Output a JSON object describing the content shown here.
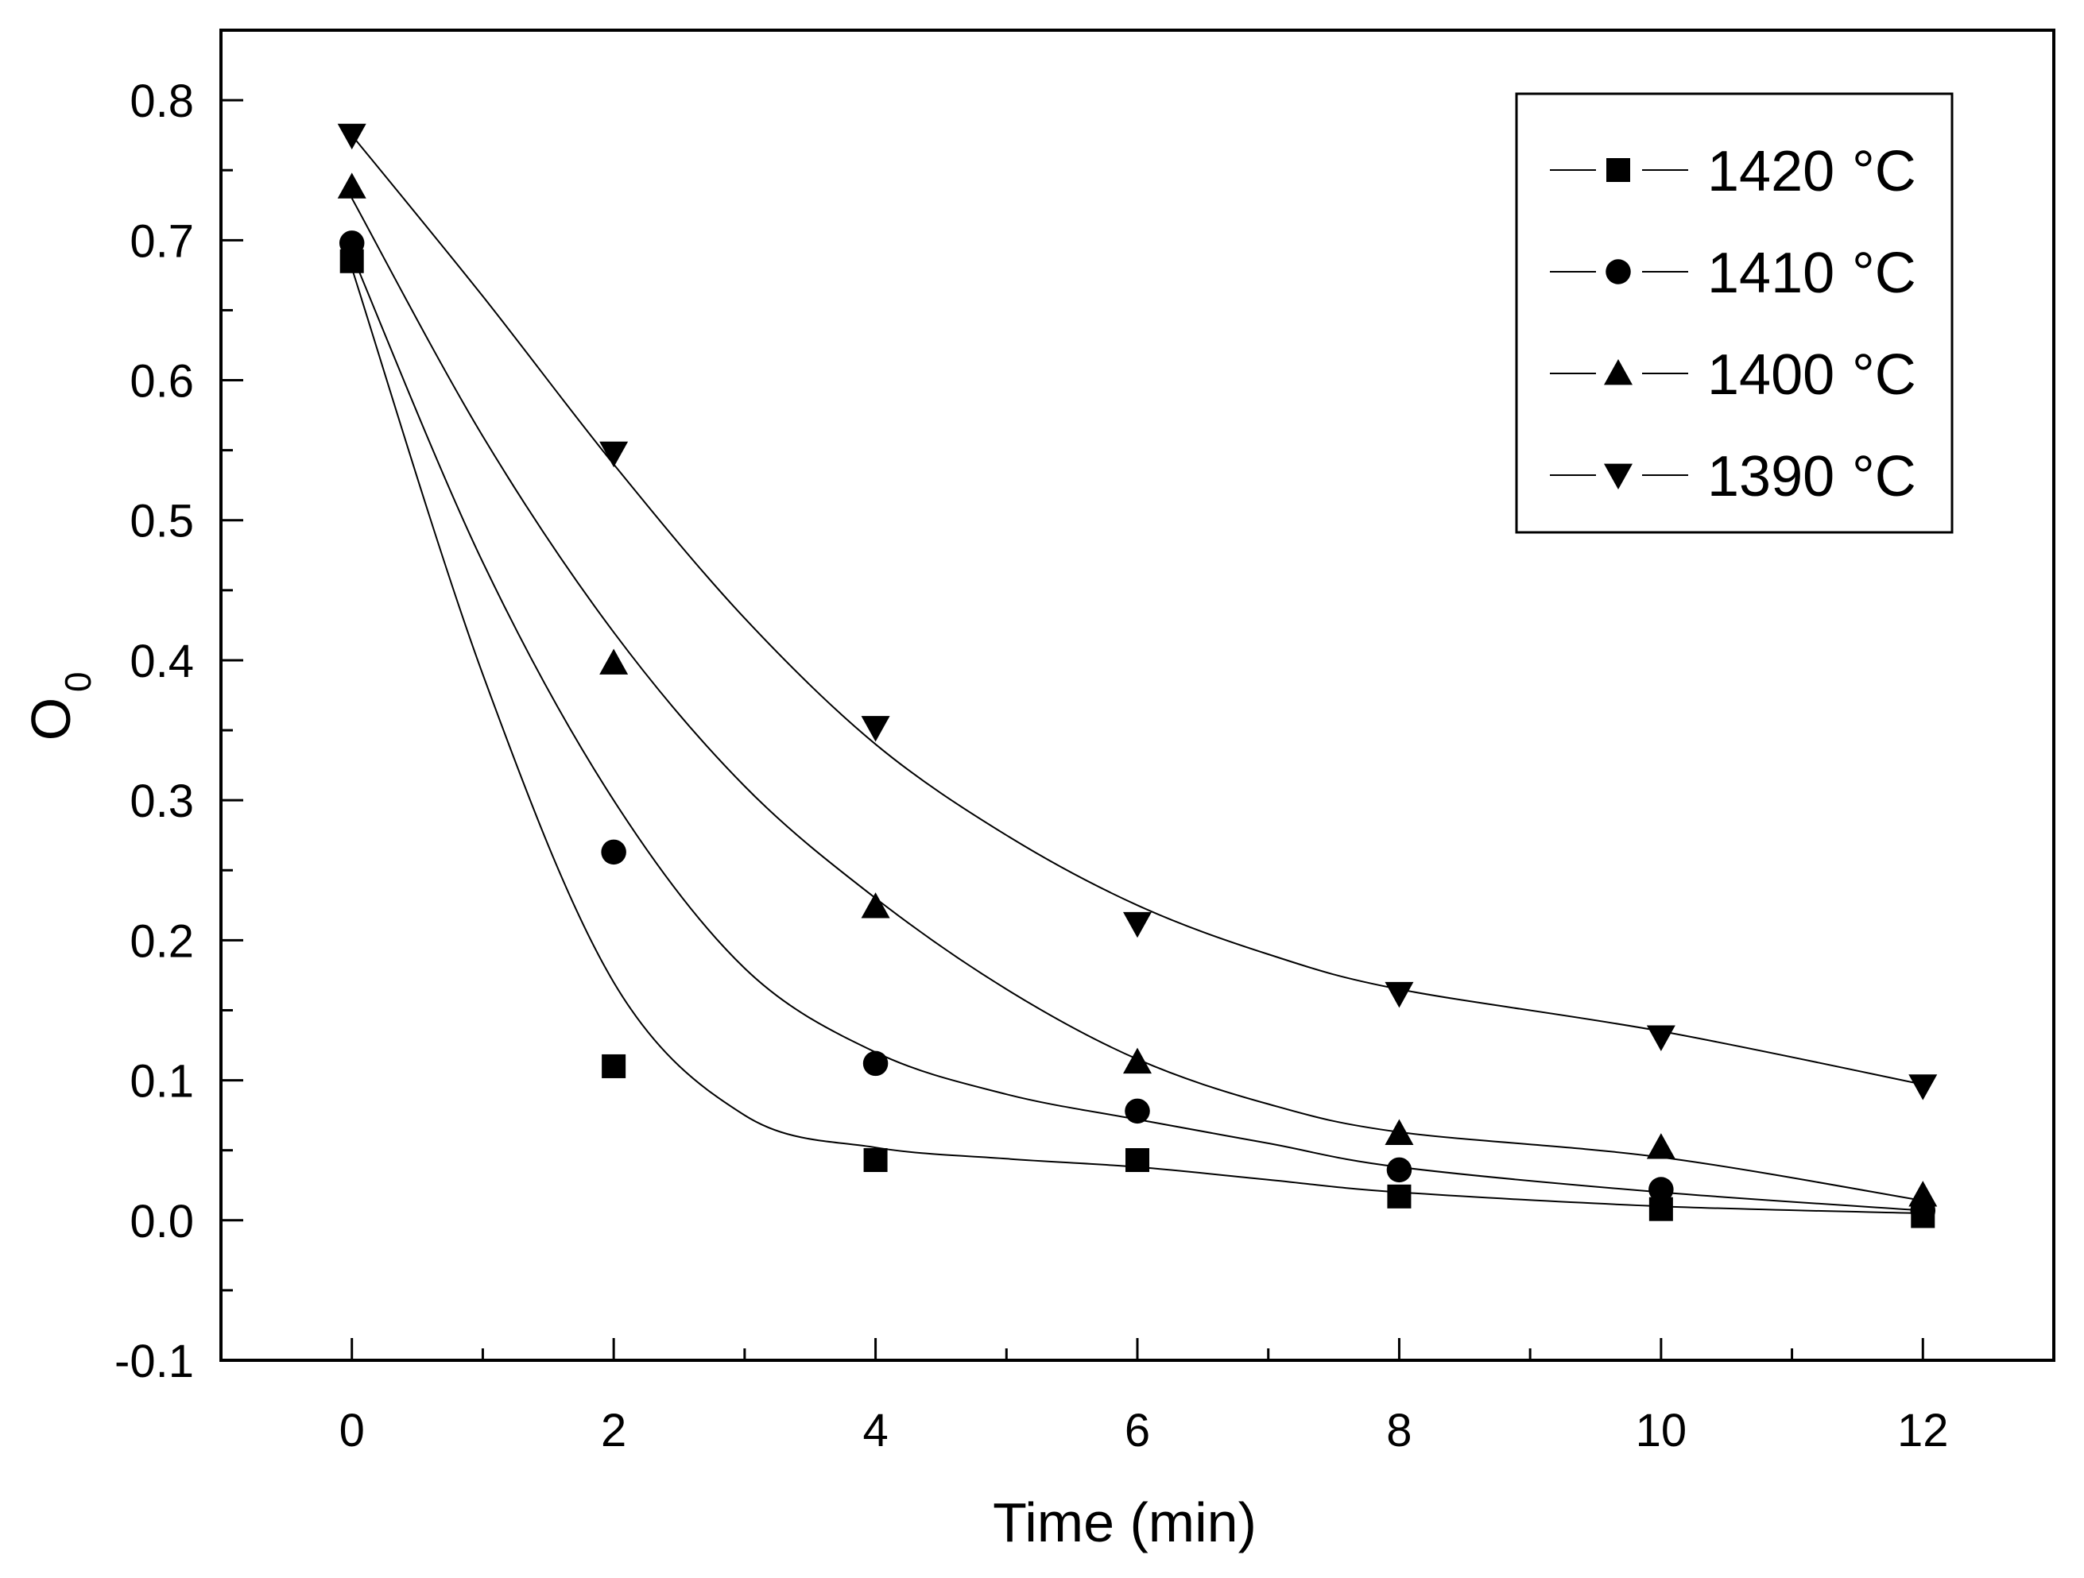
{
  "chart_data": {
    "type": "scatter",
    "title": "",
    "xlabel": "Time (min)",
    "ylabel_main": "O",
    "ylabel_sub": "0",
    "xlim": [
      -1,
      13
    ],
    "ylim": [
      -0.1,
      0.85
    ],
    "x_ticks": [
      0,
      2,
      4,
      6,
      8,
      10,
      12
    ],
    "x_tick_labels": [
      "0",
      "2",
      "4",
      "6",
      "8",
      "10",
      "12"
    ],
    "y_ticks": [
      -0.1,
      0.0,
      0.1,
      0.2,
      0.3,
      0.4,
      0.5,
      0.6,
      0.7,
      0.8
    ],
    "y_tick_labels": [
      "-0.1",
      "0.0",
      "0.1",
      "0.2",
      "0.3",
      "0.4",
      "0.5",
      "0.6",
      "0.7",
      "0.8"
    ],
    "grid": false,
    "legend_position": "top-right",
    "x": [
      0,
      2,
      4,
      6,
      8,
      10,
      12
    ],
    "series": [
      {
        "name": "1420",
        "unit": "°C",
        "marker": "square",
        "values": [
          0.685,
          0.11,
          0.043,
          0.043,
          0.017,
          0.008,
          0.003
        ],
        "fit": [
          [
            0,
            0.68
          ],
          [
            1,
            0.39
          ],
          [
            2,
            0.17
          ],
          [
            3,
            0.075
          ],
          [
            4,
            0.052
          ],
          [
            5,
            0.044
          ],
          [
            6,
            0.038
          ],
          [
            7,
            0.029
          ],
          [
            8,
            0.02
          ],
          [
            10,
            0.01
          ],
          [
            12,
            0.005
          ]
        ]
      },
      {
        "name": "1410",
        "unit": "°C",
        "marker": "circle",
        "values": [
          0.698,
          0.263,
          0.112,
          0.078,
          0.036,
          0.022,
          0.007
        ],
        "fit": [
          [
            0,
            0.69
          ],
          [
            1,
            0.47
          ],
          [
            2,
            0.3
          ],
          [
            3,
            0.18
          ],
          [
            4,
            0.12
          ],
          [
            5,
            0.09
          ],
          [
            6,
            0.072
          ],
          [
            7,
            0.055
          ],
          [
            8,
            0.038
          ],
          [
            10,
            0.02
          ],
          [
            12,
            0.007
          ]
        ]
      },
      {
        "name": "1400",
        "unit": "°C",
        "marker": "triangle-up",
        "values": [
          0.738,
          0.398,
          0.224,
          0.113,
          0.062,
          0.052,
          0.018
        ],
        "fit": [
          [
            0,
            0.73
          ],
          [
            1,
            0.56
          ],
          [
            2,
            0.42
          ],
          [
            3,
            0.31
          ],
          [
            4,
            0.23
          ],
          [
            5,
            0.165
          ],
          [
            6,
            0.115
          ],
          [
            7,
            0.083
          ],
          [
            8,
            0.063
          ],
          [
            10,
            0.045
          ],
          [
            12,
            0.014
          ]
        ]
      },
      {
        "name": "1390",
        "unit": "°C",
        "marker": "triangle-down",
        "values": [
          0.775,
          0.548,
          0.352,
          0.212,
          0.162,
          0.131,
          0.096
        ],
        "fit": [
          [
            0,
            0.775
          ],
          [
            1,
            0.66
          ],
          [
            2,
            0.54
          ],
          [
            3,
            0.43
          ],
          [
            4,
            0.34
          ],
          [
            5,
            0.275
          ],
          [
            6,
            0.225
          ],
          [
            7,
            0.19
          ],
          [
            8,
            0.165
          ],
          [
            10,
            0.135
          ],
          [
            12,
            0.097
          ]
        ]
      }
    ]
  }
}
